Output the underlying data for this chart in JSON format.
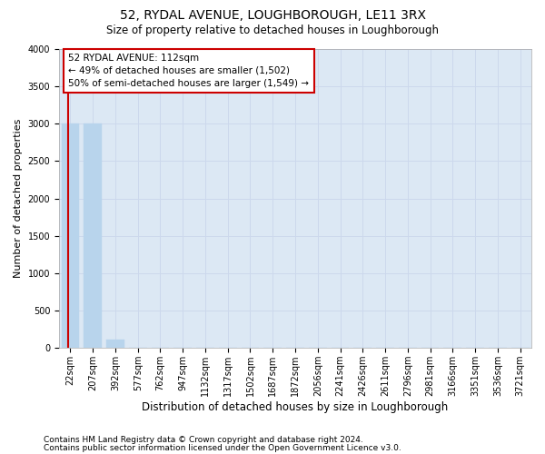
{
  "title": "52, RYDAL AVENUE, LOUGHBOROUGH, LE11 3RX",
  "subtitle": "Size of property relative to detached houses in Loughborough",
  "xlabel": "Distribution of detached houses by size in Loughborough",
  "ylabel": "Number of detached properties",
  "footnote1": "Contains HM Land Registry data © Crown copyright and database right 2024.",
  "footnote2": "Contains public sector information licensed under the Open Government Licence v3.0.",
  "categories": [
    "22sqm",
    "207sqm",
    "392sqm",
    "577sqm",
    "762sqm",
    "947sqm",
    "1132sqm",
    "1317sqm",
    "1502sqm",
    "1687sqm",
    "1872sqm",
    "2056sqm",
    "2241sqm",
    "2426sqm",
    "2611sqm",
    "2796sqm",
    "2981sqm",
    "3166sqm",
    "3351sqm",
    "3536sqm",
    "3721sqm"
  ],
  "values": [
    3000,
    3000,
    110,
    0,
    0,
    0,
    0,
    0,
    0,
    0,
    0,
    0,
    0,
    0,
    0,
    0,
    0,
    0,
    0,
    0,
    0
  ],
  "bar_color": "#b8d4ec",
  "bar_edge_color": "#b8d4ec",
  "vline_color": "#cc0000",
  "vline_x": -0.08,
  "annotation_title": "52 RYDAL AVENUE: 112sqm",
  "annotation_line2": "← 49% of detached houses are smaller (1,502)",
  "annotation_line3": "50% of semi-detached houses are larger (1,549) →",
  "annotation_box_color": "#cc0000",
  "annotation_bg": "#ffffff",
  "ylim": [
    0,
    4000
  ],
  "yticks": [
    0,
    500,
    1000,
    1500,
    2000,
    2500,
    3000,
    3500,
    4000
  ],
  "grid_color": "#ccd8ec",
  "bg_color": "#dce8f4",
  "title_fontsize": 10,
  "subtitle_fontsize": 8.5,
  "ylabel_fontsize": 8,
  "xlabel_fontsize": 8.5,
  "tick_fontsize": 7,
  "footnote_fontsize": 6.5
}
